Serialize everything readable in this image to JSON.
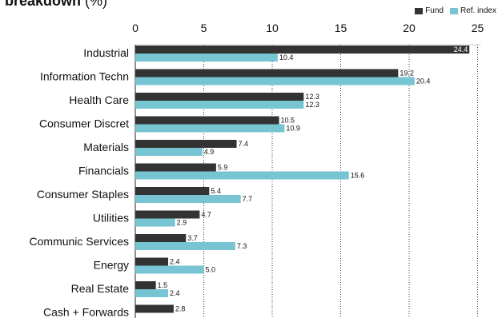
{
  "title": {
    "bold": "r breakdown",
    "rest": " (%)"
  },
  "chart_data": {
    "type": "bar",
    "orientation": "horizontal",
    "title": "r breakdown (%)",
    "categories": [
      "Industrial",
      "Information Techn",
      "Health Care",
      "Consumer Discret",
      "Materials",
      "Financials",
      "Consumer Staples",
      "Utilities",
      "Communic Services",
      "Energy",
      "Real Estate",
      "Cash + Forwards"
    ],
    "series": [
      {
        "name": "Fund",
        "color": "#333333",
        "values": [
          24.4,
          19.2,
          12.3,
          10.5,
          7.4,
          5.9,
          5.4,
          4.7,
          3.7,
          2.4,
          1.5,
          2.8
        ]
      },
      {
        "name": "Ref. index",
        "color": "#77c4d3",
        "values": [
          10.4,
          20.4,
          12.3,
          10.9,
          4.9,
          15.6,
          7.7,
          2.9,
          7.3,
          5.0,
          2.4,
          null
        ]
      }
    ],
    "data_labels": [
      [
        "24.4",
        "19.2",
        "12.3",
        "10.5",
        "7.4",
        "5.9",
        "5.4",
        "4.7",
        "3.7",
        "2.4",
        "1.5",
        "2.8"
      ],
      [
        "10.4",
        "20.4",
        "12.3",
        "10.9",
        "4.9",
        "15.6",
        "7.7",
        "2.9",
        "7.3",
        "5.0",
        "2.4",
        ""
      ]
    ],
    "xlim": [
      0,
      25
    ],
    "xticks": [
      "0",
      "5",
      "10",
      "15",
      "20",
      "25"
    ],
    "xtick_values": [
      0,
      5,
      10,
      15,
      20,
      25
    ],
    "grid": "vertical dotted",
    "legend_position": "top-right",
    "axis_position": "top"
  }
}
